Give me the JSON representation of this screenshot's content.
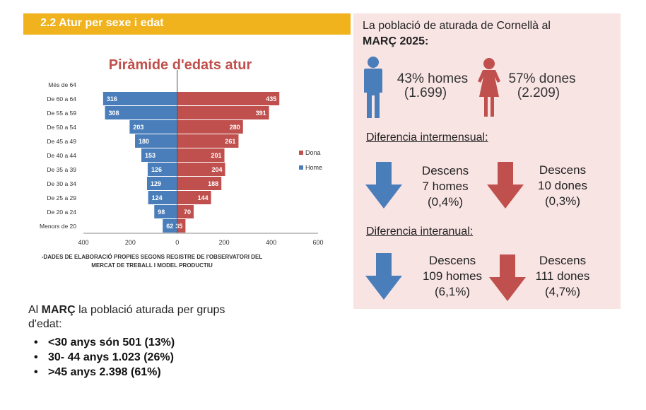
{
  "section": {
    "title": "2.2 Atur per sexe i edat"
  },
  "chart_data": {
    "type": "bar",
    "orientation": "horizontal-pyramid",
    "title": "Piràmide d'edats atur",
    "categories": [
      "Més de 64",
      "De 60 a 64",
      "De 55 a 59",
      "De 50 a 54",
      "De 45 a 49",
      "De 40 a 44",
      "De 35 a 39",
      "De 30 a 34",
      "De 25 a 29",
      "De 20 a 24",
      "Menors de 20"
    ],
    "series": [
      {
        "name": "Home",
        "color": "#4a7ebb",
        "side": "left",
        "values": [
          null,
          316,
          308,
          203,
          180,
          153,
          126,
          129,
          124,
          98,
          62
        ]
      },
      {
        "name": "Dona",
        "color": "#c0504d",
        "side": "right",
        "values": [
          null,
          435,
          391,
          280,
          261,
          201,
          204,
          188,
          144,
          70,
          35
        ]
      }
    ],
    "xlim": [
      -400,
      600
    ],
    "xticks": [
      -400,
      -200,
      0,
      200,
      400,
      600
    ],
    "xtick_labels": [
      "400",
      "200",
      "0",
      "200",
      "400",
      "600"
    ],
    "legend": [
      "Dona",
      "Home"
    ],
    "legend_position": "right",
    "source_line1": "-DADES DE ELABORACIÓ PROPIES SEGONS REGISTRE DE l'OBSERVATORI DEL",
    "source_line2": "MERCAT DE TREBALL I MODEL PRODUCTIU"
  },
  "groups": {
    "intro_prefix": "Al ",
    "intro_month": "MARÇ",
    "intro_suffix": " la població aturada per grups d'edat:",
    "items": [
      "<30 anys són 501 (13%)",
      " 30- 44 anys 1.023 (26%)",
      ">45 anys 2.398 (61%)"
    ]
  },
  "panel": {
    "heading_line1": "La població de aturada de Cornellà al",
    "heading_line2": "MARÇ 2025:",
    "men_pct": "43% homes",
    "men_count": "(1.699)",
    "women_pct": "57% dones",
    "women_count": "(2.209)",
    "monthly_title": "Diferencia intermensual:",
    "monthly_men": [
      "Descens",
      "7 homes",
      "(0,4%)"
    ],
    "monthly_women": [
      "Descens",
      "10 dones",
      "(0,3%)"
    ],
    "annual_title": "Diferencia interanual:",
    "annual_men": [
      "Descens",
      "109 homes",
      "(6,1%)"
    ],
    "annual_women": [
      "Descens",
      "111 dones",
      "(4,7%)"
    ]
  },
  "colors": {
    "accent": "#f0b21d",
    "male": "#4a7ebb",
    "female": "#c0504d",
    "panel_bg": "#f9e4e4",
    "title_red": "#c0504d"
  }
}
